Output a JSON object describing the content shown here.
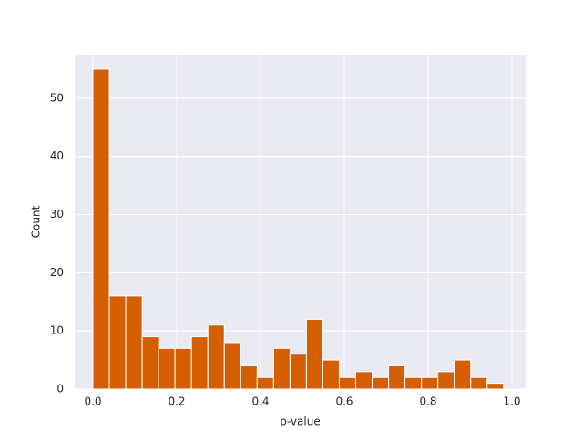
{
  "chart_data": {
    "type": "histogram",
    "xlabel": "p-value",
    "ylabel": "Count",
    "bins": [
      0,
      0.0392,
      0.0784,
      0.1176,
      0.1568,
      0.196,
      0.2352,
      0.2744,
      0.3136,
      0.3528,
      0.392,
      0.4312,
      0.4704,
      0.5096,
      0.5488,
      0.588,
      0.6272,
      0.6664,
      0.7056,
      0.7448,
      0.784,
      0.8232,
      0.8624,
      0.9016,
      0.9408,
      0.98
    ],
    "values": [
      55,
      16,
      16,
      9,
      7,
      7,
      9,
      11,
      8,
      4,
      2,
      7,
      6,
      12,
      5,
      2,
      3,
      2,
      4,
      2,
      2,
      3,
      5,
      2,
      1
    ],
    "color": "#d55e00",
    "xlim": [
      -0.0435,
      1.0326
    ],
    "xticks": [
      {
        "value": 0,
        "label": "0.0"
      },
      0.2,
      0.4,
      0.6,
      0.8,
      {
        "value": 1,
        "label": "1.0"
      }
    ],
    "ylim": [
      0,
      57.5
    ],
    "yticks": [
      0,
      10,
      20,
      30,
      40,
      50
    ],
    "grid": true
  }
}
